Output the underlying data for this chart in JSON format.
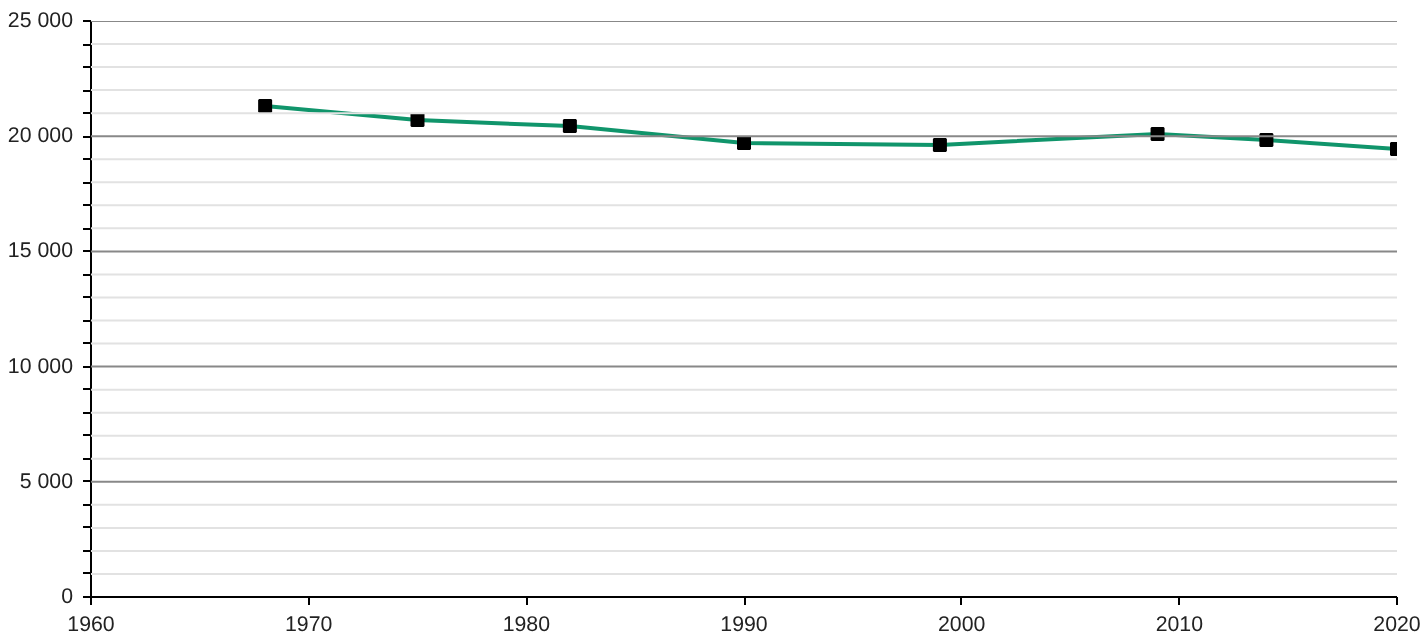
{
  "chart_data": {
    "type": "line",
    "x": [
      1968,
      1975,
      1982,
      1990,
      1999,
      2009,
      2014,
      2020
    ],
    "series": [
      {
        "color": "#10956b",
        "values": [
          21310,
          20700,
          20440,
          19700,
          19620,
          20100,
          19840,
          19440
        ]
      }
    ],
    "xlim": [
      1960,
      2020
    ],
    "xticks": [
      1960,
      1970,
      1980,
      1990,
      2000,
      2010,
      2020
    ],
    "ylim": [
      0,
      25000
    ],
    "yticks": [
      {
        "value": 0,
        "label": "0"
      },
      {
        "value": 1000,
        "label": null
      },
      {
        "value": 2000,
        "label": null
      },
      {
        "value": 3000,
        "label": null
      },
      {
        "value": 4000,
        "label": null
      },
      {
        "value": 5000,
        "label": "5 000"
      },
      {
        "value": 6000,
        "label": null
      },
      {
        "value": 7000,
        "label": null
      },
      {
        "value": 8000,
        "label": null
      },
      {
        "value": 9000,
        "label": null
      },
      {
        "value": 10000,
        "label": "10 000"
      },
      {
        "value": 11000,
        "label": null
      },
      {
        "value": 12000,
        "label": null
      },
      {
        "value": 13000,
        "label": null
      },
      {
        "value": 14000,
        "label": null
      },
      {
        "value": 15000,
        "label": "15 000"
      },
      {
        "value": 16000,
        "label": null
      },
      {
        "value": 17000,
        "label": null
      },
      {
        "value": 18000,
        "label": null
      },
      {
        "value": 19000,
        "label": null
      },
      {
        "value": 20000,
        "label": "20 000"
      },
      {
        "value": 21000,
        "label": null
      },
      {
        "value": 22000,
        "label": null
      },
      {
        "value": 23000,
        "label": null
      },
      {
        "value": 24000,
        "label": null
      },
      {
        "value": 25000,
        "label": "25 000"
      }
    ],
    "grid": "y",
    "marker": "square",
    "line_style": "solid"
  }
}
